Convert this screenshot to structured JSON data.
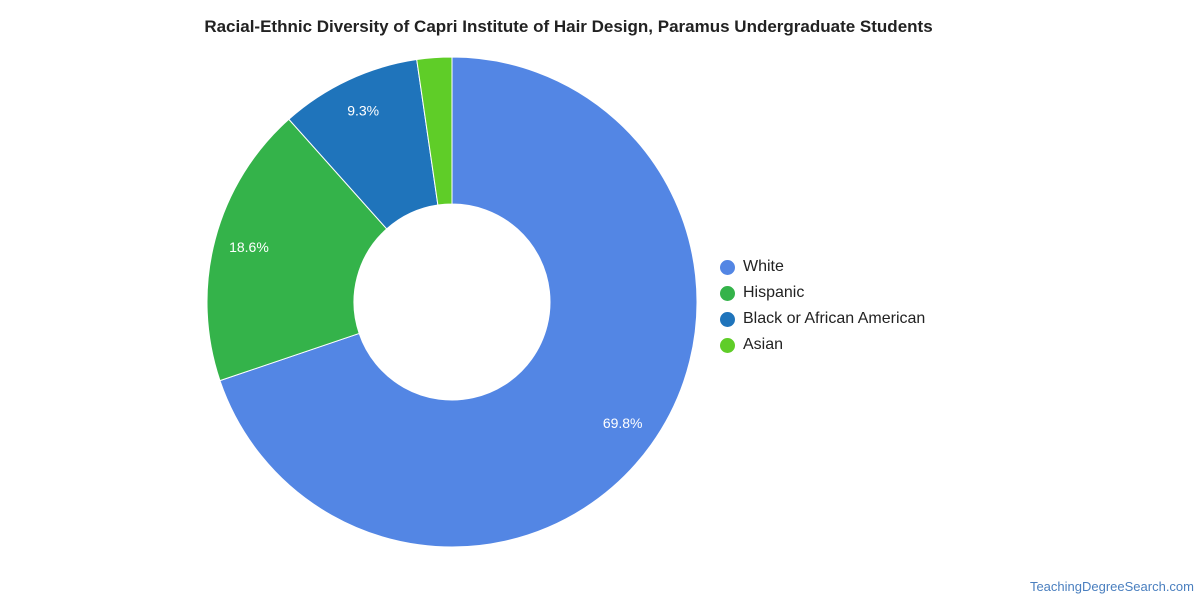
{
  "title": "Racial-Ethnic Diversity of Capri Institute of Hair Design, Paramus Undergraduate Students",
  "footer": "TeachingDegreeSearch.com",
  "chart_data": {
    "type": "pie",
    "donut": true,
    "legend_position": "right",
    "slices": [
      {
        "label": "White",
        "value": 69.8,
        "value_label": "69.8%",
        "color": "#5386e4"
      },
      {
        "label": "Hispanic",
        "value": 18.6,
        "value_label": "18.6%",
        "color": "#34b34a"
      },
      {
        "label": "Black or African American",
        "value": 9.3,
        "value_label": "9.3%",
        "color": "#1f74bb"
      },
      {
        "label": "Asian",
        "value": 2.3,
        "value_label": "",
        "color": "#5fcd28"
      }
    ]
  }
}
